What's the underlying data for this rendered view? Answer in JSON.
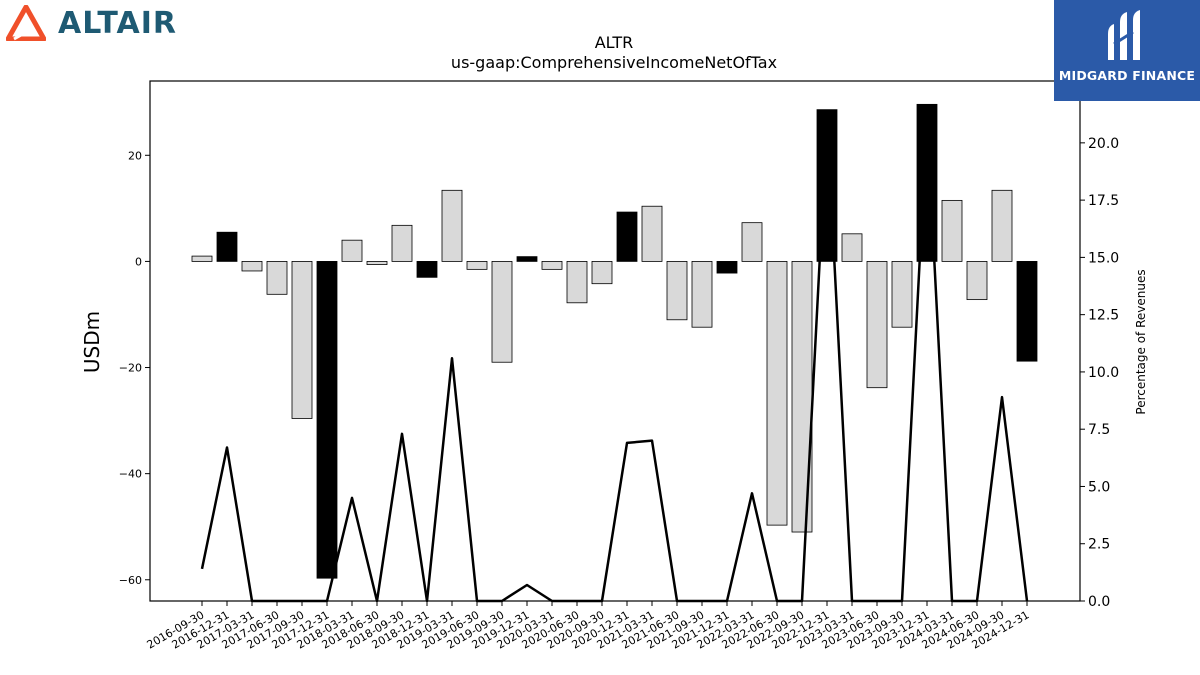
{
  "branding": {
    "left_logo": {
      "text": "ALTAIR",
      "color": "#1e5a73",
      "icon_color": "#f0502a"
    },
    "right_logo": {
      "text": "MIDGARD FINANCE",
      "bg_color": "#2b5aa8"
    }
  },
  "chart_data": {
    "type": "bar",
    "title": "ALTR",
    "subtitle": "us-gaap:ComprehensiveIncomeNetOfTax",
    "ylabel": "USDm",
    "y2label": "Percentage of Revenues",
    "ylim": [
      -64,
      34
    ],
    "y2lim": [
      0,
      22.7
    ],
    "yticks": [
      20,
      0,
      -20,
      -40,
      -60
    ],
    "y2ticks": [
      0.0,
      2.5,
      5.0,
      7.5,
      10.0,
      12.5,
      15.0,
      17.5,
      20.0
    ],
    "categories": [
      "2016-09-30",
      "2016-12-31",
      "2017-03-31",
      "2017-06-30",
      "2017-09-30",
      "2017-12-31",
      "2018-03-31",
      "2018-06-30",
      "2018-09-30",
      "2018-12-31",
      "2019-03-31",
      "2019-06-30",
      "2019-09-30",
      "2019-12-31",
      "2020-03-31",
      "2020-06-30",
      "2020-09-30",
      "2020-12-31",
      "2021-03-31",
      "2021-06-30",
      "2021-09-30",
      "2021-12-31",
      "2022-03-31",
      "2022-06-30",
      "2022-09-30",
      "2022-12-31",
      "2023-03-31",
      "2023-06-30",
      "2023-09-30",
      "2023-12-31",
      "2024-03-31",
      "2024-06-30",
      "2024-09-30",
      "2024-12-31"
    ],
    "series": [
      {
        "values": [
          1.0,
          5.5,
          -1.8,
          -6.2,
          -29.6,
          -59.7,
          4.0,
          -0.6,
          6.8,
          -3.0,
          13.4,
          -1.5,
          -19.0,
          0.9,
          -1.5,
          -7.8,
          -4.2,
          9.3,
          10.4,
          -11.0,
          -12.4,
          -2.2,
          7.3,
          -49.7,
          -51.0,
          28.6,
          5.2,
          -23.8,
          -12.4,
          29.6,
          11.5,
          -7.2,
          13.4,
          -18.8
        ],
        "colors": [
          "#d9d9d9",
          "#000000",
          "#d9d9d9",
          "#d9d9d9",
          "#d9d9d9",
          "#000000",
          "#d9d9d9",
          "#d9d9d9",
          "#d9d9d9",
          "#000000",
          "#d9d9d9",
          "#d9d9d9",
          "#d9d9d9",
          "#000000",
          "#d9d9d9",
          "#d9d9d9",
          "#d9d9d9",
          "#000000",
          "#d9d9d9",
          "#d9d9d9",
          "#d9d9d9",
          "#000000",
          "#d9d9d9",
          "#d9d9d9",
          "#d9d9d9",
          "#000000",
          "#d9d9d9",
          "#d9d9d9",
          "#d9d9d9",
          "#000000",
          "#d9d9d9",
          "#d9d9d9",
          "#d9d9d9",
          "#000000"
        ]
      },
      {
        "type": "line",
        "axis": "right",
        "color": "#000000",
        "values": [
          1.4,
          6.7,
          0.0,
          0.0,
          0.0,
          0.0,
          4.5,
          0.0,
          7.3,
          0.0,
          10.6,
          0.0,
          0.0,
          0.7,
          0.0,
          0.0,
          0.0,
          6.9,
          7.0,
          0.0,
          0.0,
          0.0,
          4.7,
          0.0,
          0.0,
          21.0,
          0.0,
          0.0,
          0.0,
          21.0,
          0.0,
          0.0,
          8.9,
          0.0
        ]
      }
    ]
  }
}
